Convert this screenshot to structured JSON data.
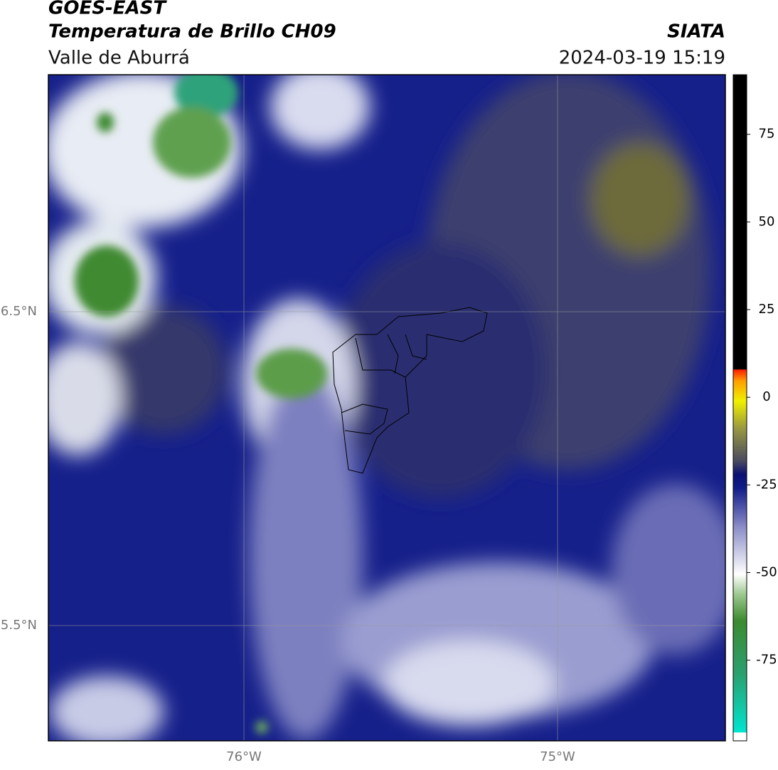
{
  "header": {
    "title": "GOES-EAST",
    "subtitle": "Temperatura de Brillo CH09",
    "region": "Valle de Aburrá",
    "source": "SIATA",
    "datetime": "2024-03-19 15:19"
  },
  "map": {
    "lat_labels": [
      "6.5°N",
      "5.5°N"
    ],
    "lon_labels": [
      "76°W",
      "75°W"
    ]
  },
  "colorbar": {
    "lim": [
      -98,
      92
    ],
    "ticks": [
      75,
      50,
      25,
      0,
      -25,
      -50,
      -75
    ]
  }
}
